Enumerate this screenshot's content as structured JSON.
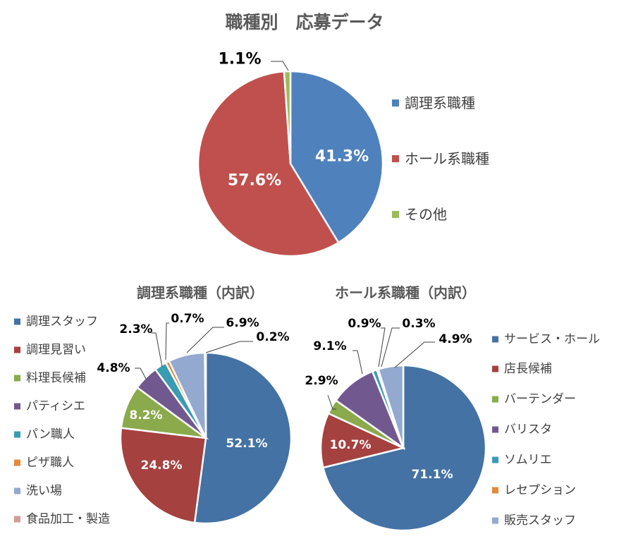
{
  "colors": {
    "background": "#ffffff",
    "title": "#595959",
    "text": "#404040",
    "label_dark": "#000000",
    "label_light": "#ffffff"
  },
  "chart_data": [
    {
      "id": "overall",
      "type": "pie",
      "title": "職種別　応募データ",
      "categories": [
        "調理系職種",
        "ホール系職種",
        "その他"
      ],
      "values": [
        41.3,
        57.6,
        1.1
      ],
      "data_labels": [
        "41.3%",
        "57.6%",
        "1.1%"
      ],
      "colors": [
        "#4F81BD",
        "#C0504D",
        "#9BBB59"
      ],
      "legend": "right"
    },
    {
      "id": "kitchen",
      "type": "pie",
      "title": "調理系職種（内訳）",
      "categories": [
        "調理スタッフ",
        "調理見習い",
        "料理長候補",
        "パティシエ",
        "パン職人",
        "ピザ職人",
        "洗い場",
        "食品加工・製造"
      ],
      "values": [
        52.1,
        24.8,
        8.2,
        4.8,
        2.3,
        0.7,
        6.9,
        0.2
      ],
      "data_labels": [
        "52.1%",
        "24.8%",
        "8.2%",
        "4.8%",
        "2.3%",
        "0.7%",
        "6.9%",
        "0.2%"
      ],
      "colors": [
        "#4472A4",
        "#A5413F",
        "#8AAA4C",
        "#71598F",
        "#3A9BB3",
        "#E38A3A",
        "#93A9CF",
        "#D49A98"
      ],
      "legend": "left"
    },
    {
      "id": "hall",
      "type": "pie",
      "title": "ホール系職種（内訳）",
      "categories": [
        "サービス・ホール",
        "店長候補",
        "バーテンダー",
        "バリスタ",
        "ソムリエ",
        "レセプション",
        "販売スタッフ"
      ],
      "values": [
        71.1,
        10.7,
        2.9,
        9.1,
        0.9,
        0.3,
        4.9
      ],
      "data_labels": [
        "71.1%",
        "10.7%",
        "2.9%",
        "9.1%",
        "0.9%",
        "0.3%",
        "4.9%"
      ],
      "colors": [
        "#4472A4",
        "#A5413F",
        "#8AAA4C",
        "#71598F",
        "#3A9BB3",
        "#E38A3A",
        "#93A9CF"
      ],
      "legend": "right"
    }
  ]
}
